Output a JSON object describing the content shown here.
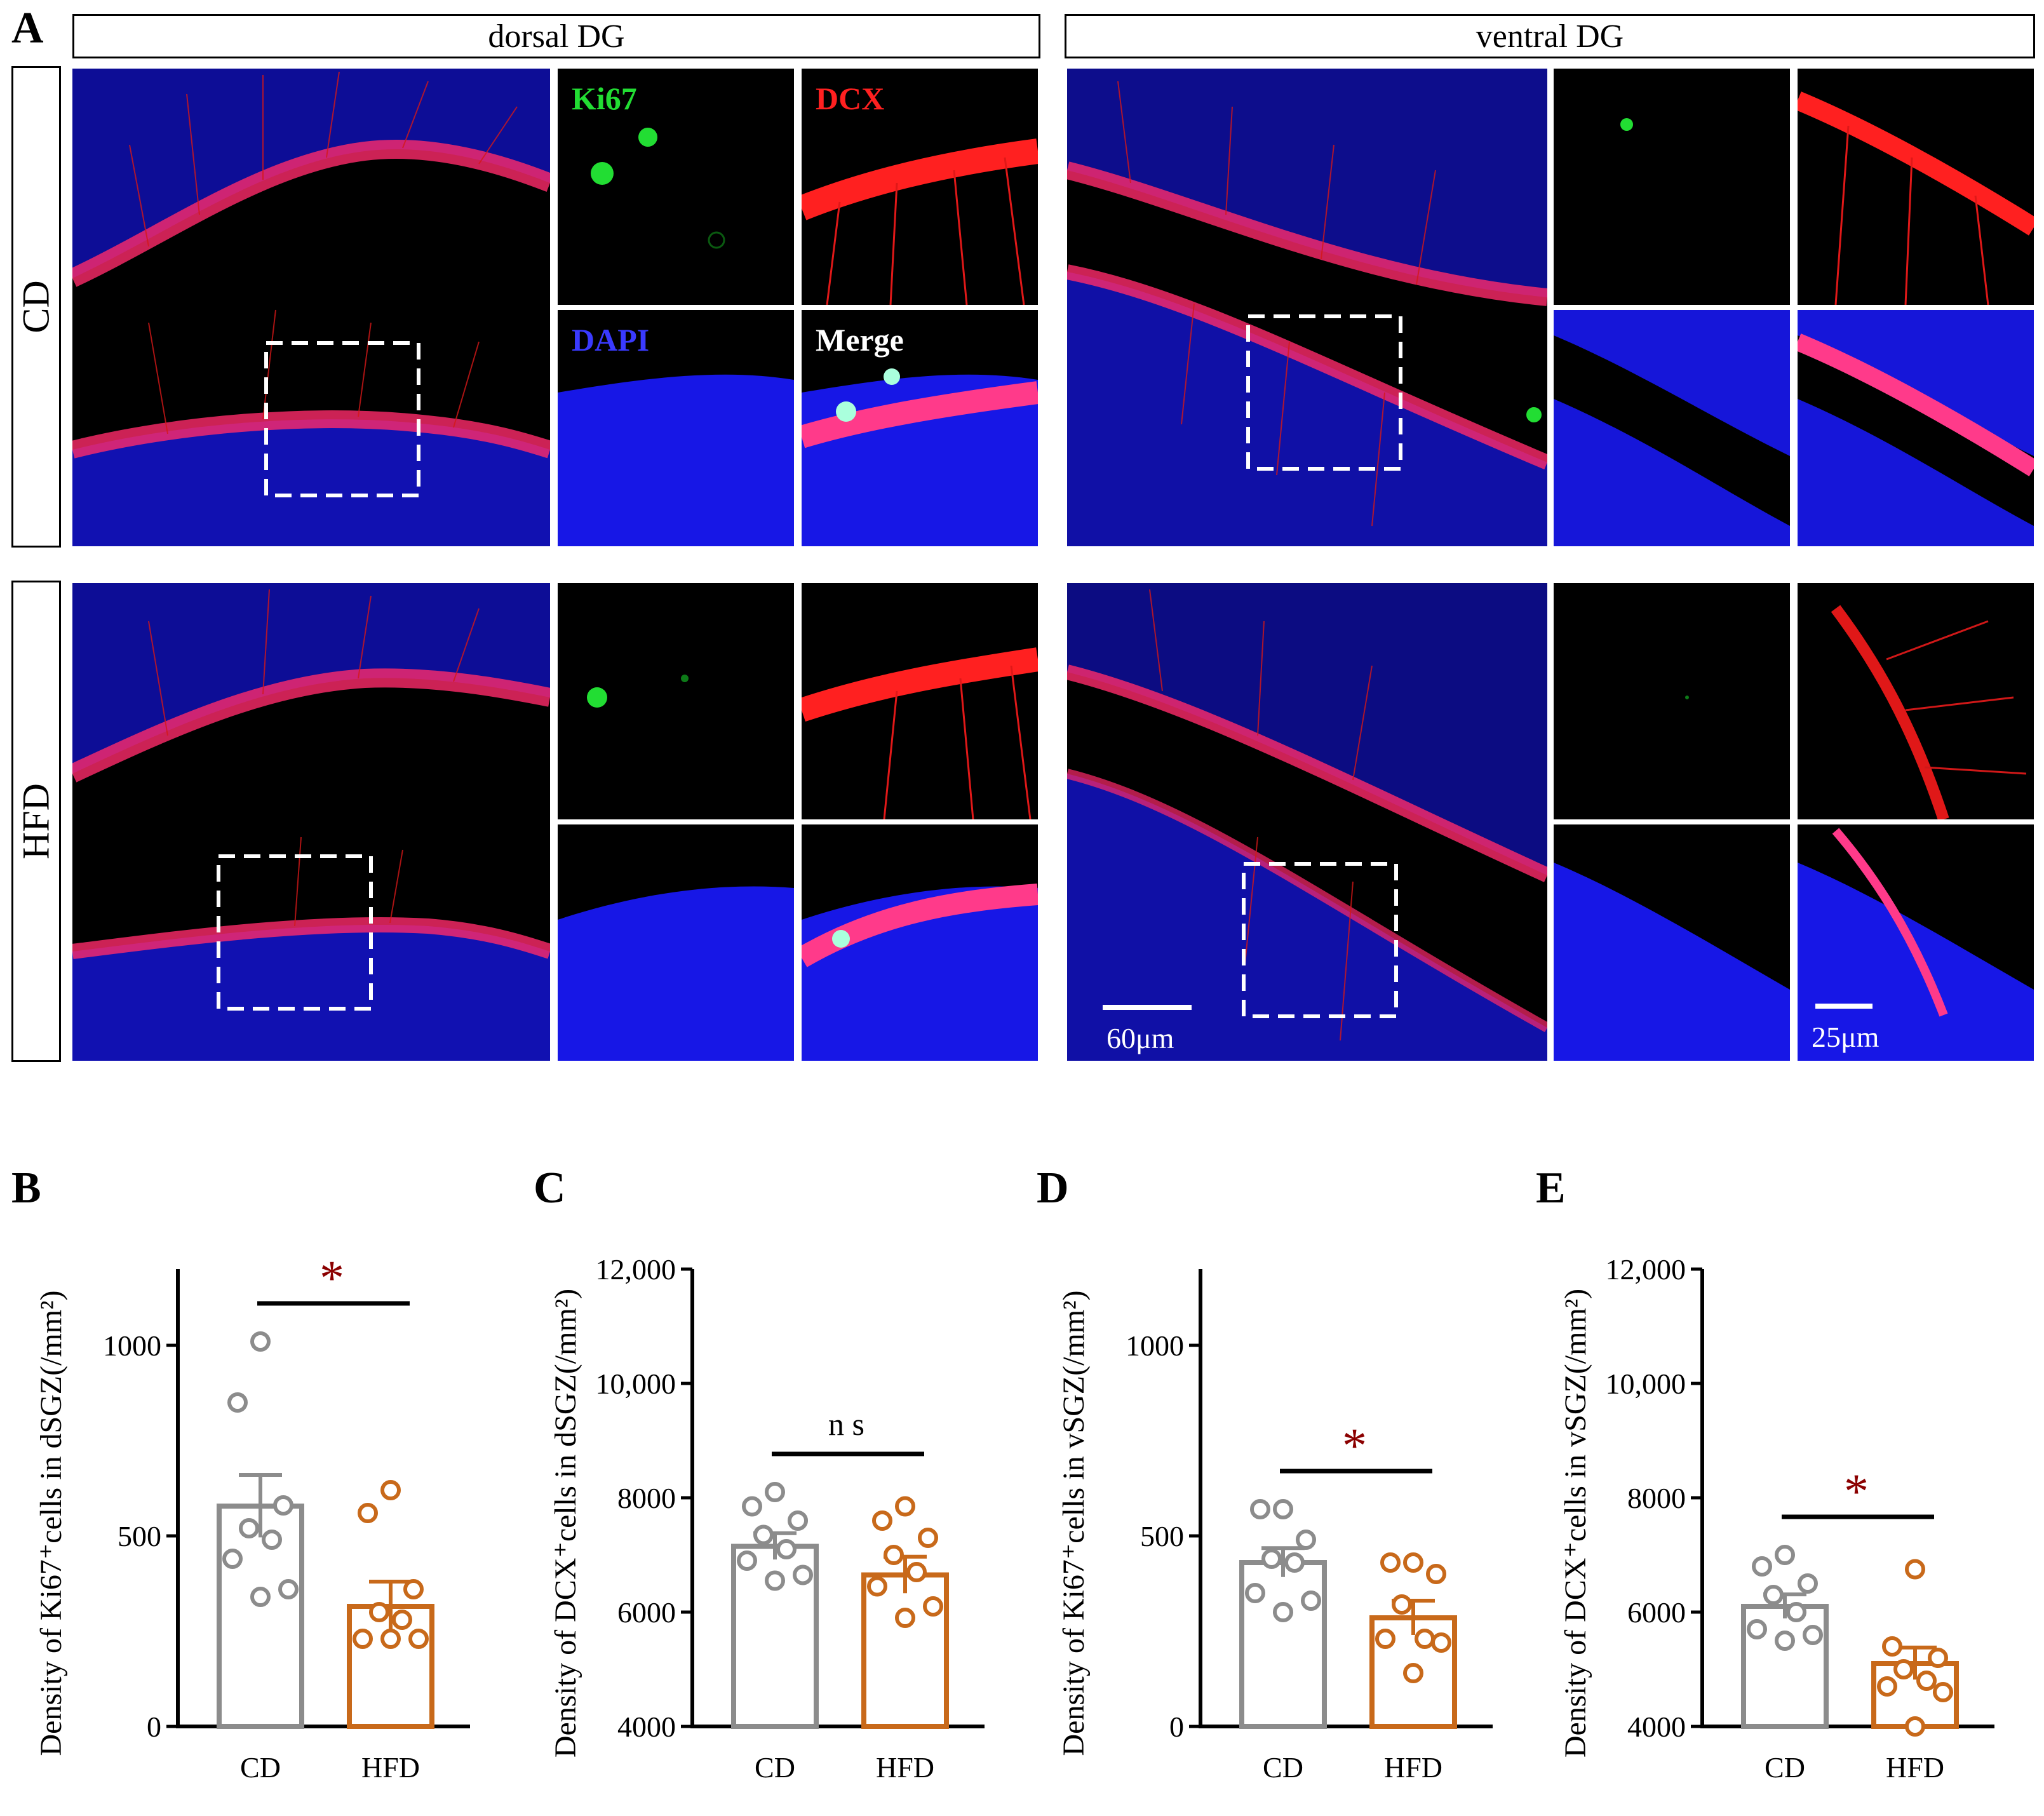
{
  "figure": {
    "panel_letters": [
      "A",
      "B",
      "C",
      "D",
      "E"
    ],
    "regions": [
      "dorsal DG",
      "ventral DG"
    ],
    "groups": [
      "CD",
      "HFD"
    ],
    "channels": [
      "Ki67",
      "DCX",
      "DAPI",
      "Merge"
    ],
    "scale_bars": [
      "60μm",
      "25μm"
    ],
    "colors": {
      "ki67": "#22dd33",
      "dcx": "#ff2020",
      "dapi": "#1a1aff",
      "cd": "#8c8c8c",
      "hfd": "#c8691a",
      "sig": "#8b0000"
    }
  },
  "chart_data": [
    {
      "type": "bar",
      "panel": "B",
      "ylabel": "Density of Ki67⁺cells in dSGZ(/mm²)",
      "categories": [
        "CD",
        "HFD"
      ],
      "ylim": [
        0,
        1200
      ],
      "yticks": [
        "0",
        "500",
        "1000"
      ],
      "ytick_values": [
        0,
        500,
        1000
      ],
      "values": [
        578,
        315
      ],
      "sem": [
        82,
        65
      ],
      "points": [
        [
          1010,
          850,
          580,
          520,
          490,
          440,
          360,
          340
        ],
        [
          620,
          560,
          360,
          300,
          280,
          230,
          230,
          230
        ]
      ],
      "significance": "*"
    },
    {
      "type": "bar",
      "panel": "C",
      "ylabel": "Density of DCX⁺cells in dSGZ(/mm²)",
      "categories": [
        "CD",
        "HFD"
      ],
      "ylim": [
        4000,
        12000
      ],
      "yticks": [
        "4000",
        "6000",
        "8000",
        "10,000",
        "12,000"
      ],
      "ytick_values": [
        4000,
        6000,
        8000,
        10000,
        12000
      ],
      "values": [
        7150,
        6650
      ],
      "sem": [
        230,
        320
      ],
      "points": [
        [
          8100,
          7850,
          7600,
          7350,
          7100,
          6900,
          6650,
          6550
        ],
        [
          7850,
          7600,
          7300,
          7000,
          6700,
          6450,
          6100,
          5900
        ]
      ],
      "significance": "n s"
    },
    {
      "type": "bar",
      "panel": "D",
      "ylabel": "Density of Ki67⁺cells in vSGZ(/mm²)",
      "categories": [
        "CD",
        "HFD"
      ],
      "ylim": [
        0,
        1200
      ],
      "yticks": [
        "0",
        "500",
        "1000"
      ],
      "ytick_values": [
        0,
        500,
        1000
      ],
      "values": [
        430,
        285
      ],
      "sem": [
        38,
        45
      ],
      "points": [
        [
          570,
          570,
          490,
          440,
          430,
          350,
          330,
          300
        ],
        [
          430,
          430,
          400,
          320,
          230,
          230,
          220,
          140
        ]
      ],
      "significance": "*"
    },
    {
      "type": "bar",
      "panel": "E",
      "ylabel": "Density of DCX⁺cells in vSGZ(/mm²)",
      "categories": [
        "CD",
        "HFD"
      ],
      "ylim": [
        4000,
        12000
      ],
      "yticks": [
        "4000",
        "6000",
        "8000",
        "10,000",
        "12,000"
      ],
      "ytick_values": [
        4000,
        6000,
        8000,
        10000,
        12000
      ],
      "values": [
        6100,
        5100
      ],
      "sem": [
        210,
        280
      ],
      "points": [
        [
          7000,
          6800,
          6500,
          6300,
          6000,
          5700,
          5600,
          5500
        ],
        [
          6750,
          5400,
          5200,
          5000,
          4800,
          4700,
          4600,
          4000
        ]
      ],
      "significance": "*"
    }
  ]
}
